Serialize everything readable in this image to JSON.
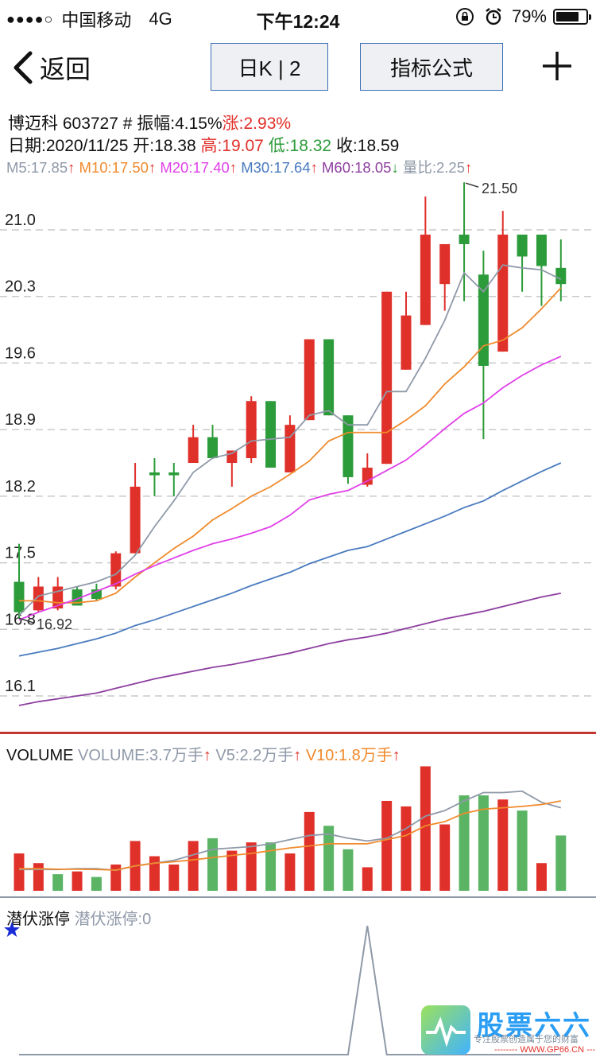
{
  "status": {
    "carrier": "中国移动",
    "network": "4G",
    "time": "下午12:24",
    "battery": "79%",
    "battery_level": 0.79
  },
  "nav": {
    "back_label": "返回",
    "kline_label": "日K | 2",
    "formula_label": "指标公式"
  },
  "info": {
    "name": "博迈科",
    "code": "603727",
    "amp_label": "# 振幅:4.15%",
    "chg_label": "涨:2.93%",
    "date_label": "日期:2020/11/25",
    "open_label": "开:18.38",
    "high_label": "高:19.07",
    "low_label": "低:18.32",
    "close_label": "收:18.59"
  },
  "ma_legend": {
    "m5": "M5:17.85",
    "m10": "M10:17.50",
    "m20": "M20:17.40",
    "m30": "M30:17.64",
    "m60": "M60:18.05",
    "vr": "量比:2.25",
    "up": "↑",
    "down": "↓"
  },
  "vol_legend": {
    "title": "VOLUME",
    "volume": "VOLUME:3.7万手",
    "v5": "V5:2.2万手",
    "v10": "V10:1.8万手"
  },
  "lurk_legend": {
    "title": "潜伏涨停",
    "value": "潜伏涨停:0"
  },
  "watermark": {
    "title": "股票六六",
    "subtitle": "专注股票创造属于您的财富",
    "url": "-------- WWW.GP66.CN ---"
  },
  "colors": {
    "up": "#e0302a",
    "down": "#2c9b3a",
    "m5": "#8f99a8",
    "m10": "#f08a2c",
    "m20": "#e040e8",
    "m30": "#4a7bbf",
    "m60": "#8e3fa0",
    "volume": "#8f99a8",
    "v10": "#f08a2c",
    "divider": "#c23531"
  },
  "chart_data": [
    {
      "type": "candlestick",
      "ylim": [
        15.85,
        21.5
      ],
      "yticks": [
        "21.0",
        "20.3",
        "19.6",
        "18.9",
        "18.2",
        "17.5",
        "16.8",
        "16.1"
      ],
      "annotations": [
        {
          "index": 23,
          "value": 21.5,
          "label": "21.50"
        },
        {
          "index": 0,
          "value": 16.92,
          "label": "16.92"
        }
      ],
      "candles": [
        {
          "o": 17.3,
          "h": 17.7,
          "l": 16.92,
          "c": 16.98
        },
        {
          "o": 17.0,
          "h": 17.35,
          "l": 16.98,
          "c": 17.25
        },
        {
          "o": 17.02,
          "h": 17.35,
          "l": 17.0,
          "c": 17.25
        },
        {
          "o": 17.22,
          "h": 17.25,
          "l": 17.05,
          "c": 17.05
        },
        {
          "o": 17.22,
          "h": 17.28,
          "l": 17.1,
          "c": 17.12
        },
        {
          "o": 17.25,
          "h": 17.62,
          "l": 17.22,
          "c": 17.6
        },
        {
          "o": 17.6,
          "h": 18.55,
          "l": 17.6,
          "c": 18.3
        },
        {
          "o": 18.45,
          "h": 18.6,
          "l": 18.2,
          "c": 18.42
        },
        {
          "o": 18.45,
          "h": 18.55,
          "l": 18.2,
          "c": 18.42
        },
        {
          "o": 18.55,
          "h": 18.95,
          "l": 18.55,
          "c": 18.82
        },
        {
          "o": 18.82,
          "h": 18.95,
          "l": 18.6,
          "c": 18.6
        },
        {
          "o": 18.55,
          "h": 18.65,
          "l": 18.3,
          "c": 18.68
        },
        {
          "o": 18.6,
          "h": 19.25,
          "l": 18.55,
          "c": 19.2
        },
        {
          "o": 19.2,
          "h": 19.2,
          "l": 18.5,
          "c": 18.5
        },
        {
          "o": 18.45,
          "h": 19.05,
          "l": 18.45,
          "c": 18.95
        },
        {
          "o": 19.0,
          "h": 19.85,
          "l": 19.0,
          "c": 19.85
        },
        {
          "o": 19.85,
          "h": 19.85,
          "l": 19.05,
          "c": 19.05
        },
        {
          "o": 19.05,
          "h": 19.05,
          "l": 18.33,
          "c": 18.4
        },
        {
          "o": 18.32,
          "h": 18.65,
          "l": 18.3,
          "c": 18.5
        },
        {
          "o": 18.54,
          "h": 20.35,
          "l": 18.54,
          "c": 20.35
        },
        {
          "o": 19.53,
          "h": 20.35,
          "l": 19.53,
          "c": 20.1
        },
        {
          "o": 20.0,
          "h": 21.35,
          "l": 20.0,
          "c": 20.95
        },
        {
          "o": 20.43,
          "h": 20.85,
          "l": 20.15,
          "c": 20.85
        },
        {
          "o": 20.95,
          "h": 21.5,
          "l": 20.25,
          "c": 20.85
        },
        {
          "o": 20.53,
          "h": 20.78,
          "l": 18.8,
          "c": 19.57
        },
        {
          "o": 19.72,
          "h": 21.2,
          "l": 19.72,
          "c": 20.95
        },
        {
          "o": 20.95,
          "h": 20.95,
          "l": 20.35,
          "c": 20.72
        },
        {
          "o": 20.95,
          "h": 20.95,
          "l": 20.2,
          "c": 20.62
        },
        {
          "o": 20.6,
          "h": 20.9,
          "l": 20.25,
          "c": 20.43
        }
      ],
      "series": [
        {
          "key": "m5",
          "values": [
            16.95,
            17.15,
            17.2,
            17.25,
            17.3,
            17.38,
            17.58,
            17.88,
            18.15,
            18.45,
            18.6,
            18.65,
            18.78,
            18.8,
            18.82,
            19.05,
            19.1,
            18.95,
            18.95,
            19.3,
            19.3,
            19.65,
            20.05,
            20.55,
            20.35,
            20.63,
            20.6,
            20.58,
            20.48
          ]
        },
        {
          "key": "m10",
          "values": [
            17.1,
            17.1,
            17.08,
            17.08,
            17.1,
            17.18,
            17.35,
            17.5,
            17.65,
            17.78,
            17.95,
            18.07,
            18.2,
            18.3,
            18.43,
            18.57,
            18.78,
            18.87,
            18.87,
            18.87,
            19.0,
            19.15,
            19.38,
            19.56,
            19.78,
            19.84,
            19.97,
            20.17,
            20.39
          ]
        },
        {
          "key": "m20",
          "values": [
            16.9,
            16.98,
            17.05,
            17.12,
            17.2,
            17.28,
            17.38,
            17.47,
            17.55,
            17.63,
            17.7,
            17.75,
            17.81,
            17.88,
            18.0,
            18.16,
            18.22,
            18.26,
            18.36,
            18.47,
            18.58,
            18.74,
            18.91,
            19.07,
            19.18,
            19.34,
            19.47,
            19.58,
            19.67
          ]
        },
        {
          "key": "m30",
          "values": [
            16.52,
            16.56,
            16.6,
            16.65,
            16.7,
            16.76,
            16.84,
            16.9,
            16.97,
            17.04,
            17.11,
            17.18,
            17.26,
            17.33,
            17.4,
            17.49,
            17.56,
            17.63,
            17.67,
            17.75,
            17.83,
            17.91,
            17.99,
            18.08,
            18.15,
            18.26,
            18.36,
            18.46,
            18.55
          ]
        },
        {
          "key": "m60",
          "values": [
            16.0,
            16.04,
            16.07,
            16.1,
            16.13,
            16.18,
            16.23,
            16.28,
            16.32,
            16.36,
            16.4,
            16.43,
            16.47,
            16.51,
            16.55,
            16.6,
            16.65,
            16.69,
            16.72,
            16.76,
            16.81,
            16.86,
            16.91,
            16.95,
            16.99,
            17.04,
            17.09,
            17.14,
            17.18
          ]
        }
      ]
    },
    {
      "type": "bar",
      "title": "VOLUME",
      "ylim": [
        0,
        4.6
      ],
      "values": [
        1.35,
        1.0,
        0.6,
        0.7,
        0.5,
        0.95,
        1.8,
        1.25,
        0.95,
        1.8,
        1.9,
        1.45,
        1.75,
        1.75,
        1.35,
        2.85,
        2.35,
        1.5,
        0.85,
        3.25,
        3.05,
        4.5,
        2.4,
        3.45,
        3.45,
        3.3,
        2.9,
        1.0,
        2.0
      ],
      "directions": [
        "up",
        "up",
        "down",
        "up",
        "down",
        "up",
        "up",
        "up",
        "up",
        "up",
        "down",
        "up",
        "up",
        "down",
        "up",
        "up",
        "down",
        "down",
        "up",
        "up",
        "up",
        "up",
        "up",
        "down",
        "down",
        "up",
        "down",
        "up",
        "down"
      ],
      "series": [
        {
          "key": "v5",
          "values": [
            0.77,
            0.77,
            0.77,
            0.8,
            0.8,
            0.74,
            0.9,
            1.0,
            1.1,
            1.3,
            1.5,
            1.55,
            1.6,
            1.7,
            1.85,
            2.0,
            2.05,
            1.9,
            1.8,
            1.9,
            2.25,
            2.7,
            2.9,
            3.25,
            3.55,
            3.55,
            3.6,
            3.2,
            3.0
          ]
        },
        {
          "key": "v10",
          "values": [
            0.8,
            0.8,
            0.78,
            0.78,
            0.77,
            0.75,
            0.9,
            1.0,
            1.05,
            1.12,
            1.2,
            1.28,
            1.35,
            1.45,
            1.55,
            1.62,
            1.7,
            1.7,
            1.7,
            1.85,
            2.0,
            2.35,
            2.5,
            2.8,
            2.95,
            3.0,
            3.05,
            3.12,
            3.25
          ]
        }
      ]
    },
    {
      "type": "line",
      "title": "潜伏涨停",
      "ylim": [
        0,
        1
      ],
      "series": [
        {
          "key": "lurk",
          "values": [
            0,
            0,
            0,
            0,
            0,
            0,
            0,
            0,
            0,
            0,
            0,
            0,
            0,
            0,
            0,
            0,
            0,
            0,
            1,
            0,
            0,
            0,
            0,
            0,
            0,
            0,
            0,
            0,
            0
          ]
        }
      ]
    }
  ]
}
